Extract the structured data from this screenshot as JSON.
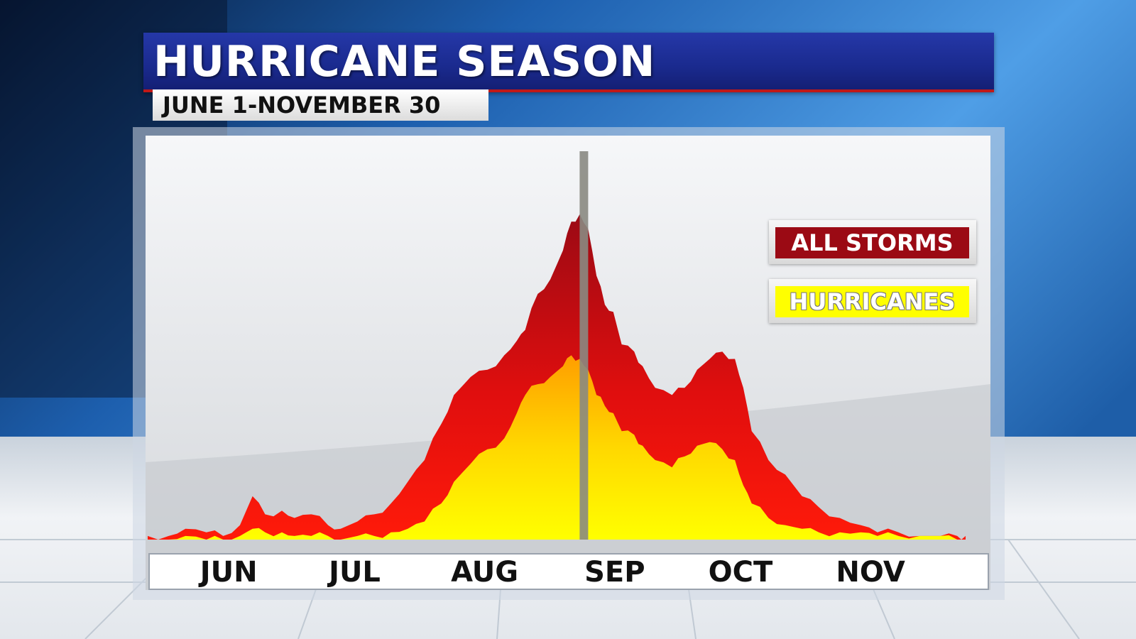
{
  "header": {
    "title": "HURRICANE SEASON",
    "subtitle": "JUNE 1-NOVEMBER 30"
  },
  "colors": {
    "all_storms": "#ee1111",
    "all_storms_dark": "#9b0a14",
    "hurricanes": "#ffff00",
    "hurricanes_dark": "#ffb000",
    "peak_marker": "#8a8a82",
    "title_bar": "#1a2a8e"
  },
  "chart_data": {
    "type": "area",
    "title": "HURRICANE SEASON",
    "subtitle": "JUNE 1-NOVEMBER 30",
    "x_unit": "day of year",
    "xlim": [
      148,
      343
    ],
    "ylim": [
      0,
      100
    ],
    "y_unit": "relative activity",
    "grid": false,
    "legend": {
      "placement": "top-right",
      "entries": [
        "ALL STORMS",
        "HURRICANES"
      ]
    },
    "x_tick_labels": [
      {
        "label": "JUN",
        "x": 167
      },
      {
        "label": "JUL",
        "x": 197
      },
      {
        "label": "AUG",
        "x": 228
      },
      {
        "label": "SEP",
        "x": 259
      },
      {
        "label": "OCT",
        "x": 289
      },
      {
        "label": "NOV",
        "x": 320
      }
    ],
    "peak_marker_x": 252,
    "series": [
      {
        "name": "ALL STORMS",
        "x": [
          148,
          153,
          157,
          162,
          166,
          170,
          173,
          176,
          180,
          183,
          187,
          191,
          194,
          198,
          202,
          206,
          210,
          214,
          218,
          221,
          225,
          229,
          233,
          236,
          238,
          241,
          244,
          247,
          249,
          251,
          253,
          255,
          257,
          259,
          261,
          264,
          266,
          269,
          273,
          276,
          279,
          282,
          285,
          288,
          290,
          292,
          296,
          300,
          304,
          308,
          313,
          318,
          322,
          327,
          332,
          337,
          341,
          343
        ],
        "y": [
          1,
          1,
          3,
          2,
          1,
          4,
          12,
          7,
          8,
          6,
          7,
          4,
          3,
          5,
          7,
          10,
          16,
          22,
          32,
          40,
          45,
          47,
          51,
          55,
          58,
          68,
          72,
          80,
          88,
          90,
          86,
          73,
          65,
          63,
          54,
          52,
          48,
          42,
          40,
          42,
          47,
          50,
          52,
          50,
          42,
          30,
          22,
          18,
          12,
          9,
          6,
          4,
          2,
          2,
          1,
          1,
          1,
          1
        ]
      },
      {
        "name": "HURRICANES",
        "x": [
          148,
          153,
          157,
          162,
          166,
          170,
          173,
          176,
          180,
          183,
          187,
          191,
          194,
          198,
          202,
          206,
          210,
          214,
          218,
          221,
          225,
          229,
          233,
          236,
          238,
          241,
          244,
          247,
          249,
          251,
          253,
          255,
          257,
          259,
          261,
          264,
          266,
          269,
          273,
          276,
          279,
          282,
          285,
          288,
          290,
          292,
          296,
          300,
          304,
          308,
          313,
          318,
          322,
          327,
          332,
          337,
          341,
          343
        ],
        "y": [
          0,
          0,
          1,
          0,
          0,
          1,
          3,
          2,
          2,
          1,
          1,
          1,
          0,
          1,
          1,
          2,
          3,
          5,
          10,
          16,
          21,
          25,
          28,
          35,
          40,
          43,
          45,
          48,
          51,
          50,
          47,
          40,
          37,
          35,
          30,
          29,
          26,
          22,
          20,
          23,
          26,
          27,
          25,
          22,
          15,
          10,
          6,
          4,
          3,
          2,
          2,
          2,
          1,
          1,
          1,
          1,
          0,
          0
        ]
      }
    ]
  }
}
